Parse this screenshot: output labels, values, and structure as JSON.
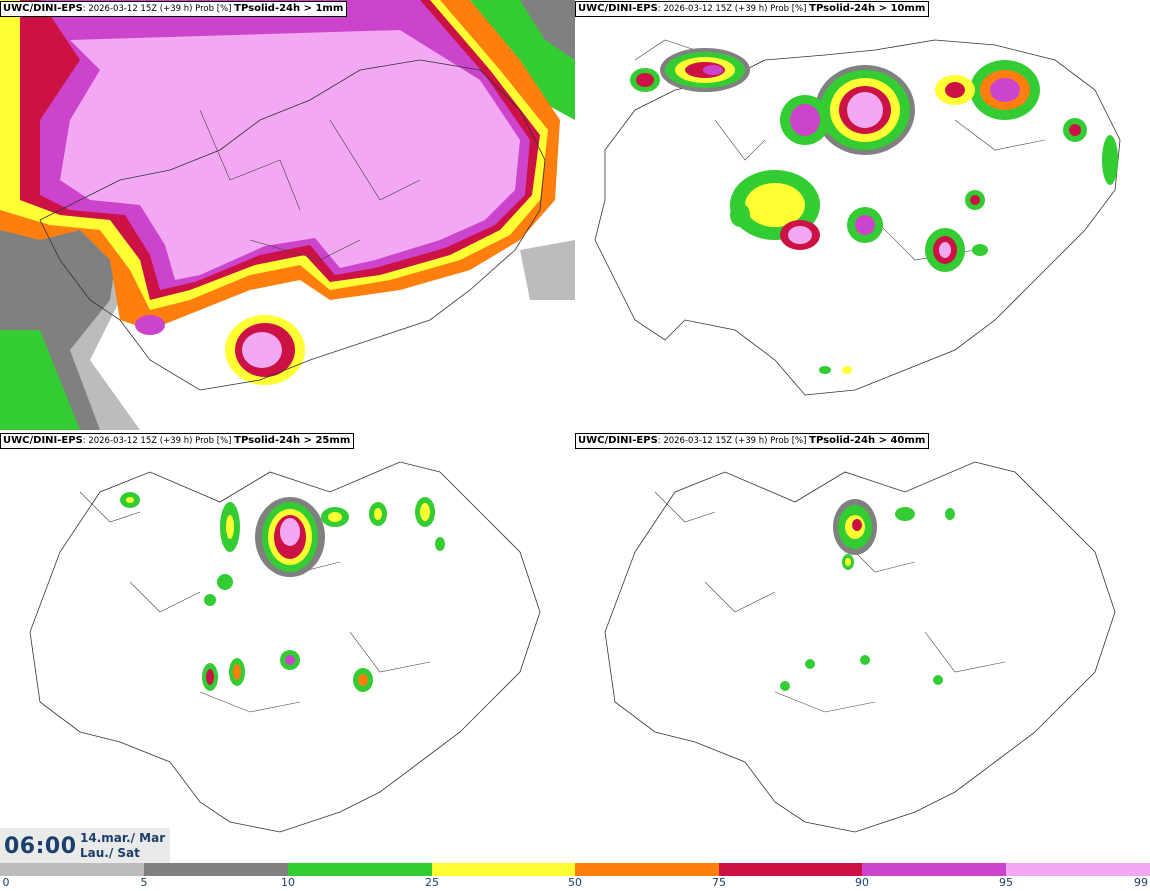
{
  "panels": [
    {
      "model": "UWC/DINI-EPS",
      "meta": ": 2026-03-12 15Z (+39 h) Prob [%] ",
      "param": "TPsolid-24h > 1mm"
    },
    {
      "model": "UWC/DINI-EPS",
      "meta": ": 2026-03-12 15Z (+39 h) Prob [%] ",
      "param": "TPsolid-24h > 10mm"
    },
    {
      "model": "UWC/DINI-EPS",
      "meta": ": 2026-03-12 15Z (+39 h) Prob [%] ",
      "param": "TPsolid-24h > 25mm"
    },
    {
      "model": "UWC/DINI-EPS",
      "meta": ": 2026-03-12 15Z (+39 h) Prob [%] ",
      "param": "TPsolid-24h > 40mm"
    }
  ],
  "valid_time": {
    "time": "06:00",
    "date_line1": "14.mar./ Mar",
    "date_line2": "Lau./ Sat"
  },
  "legend": {
    "ticks": [
      "0",
      "5",
      "10",
      "25",
      "50",
      "75",
      "90",
      "95",
      "99"
    ],
    "colors": [
      "#ffffff",
      "#bcbcbc",
      "#808080",
      "#33cc33",
      "#ffff33",
      "#ff7f0e",
      "#cc1144",
      "#cc44cc",
      "#f2a8f2"
    ]
  }
}
